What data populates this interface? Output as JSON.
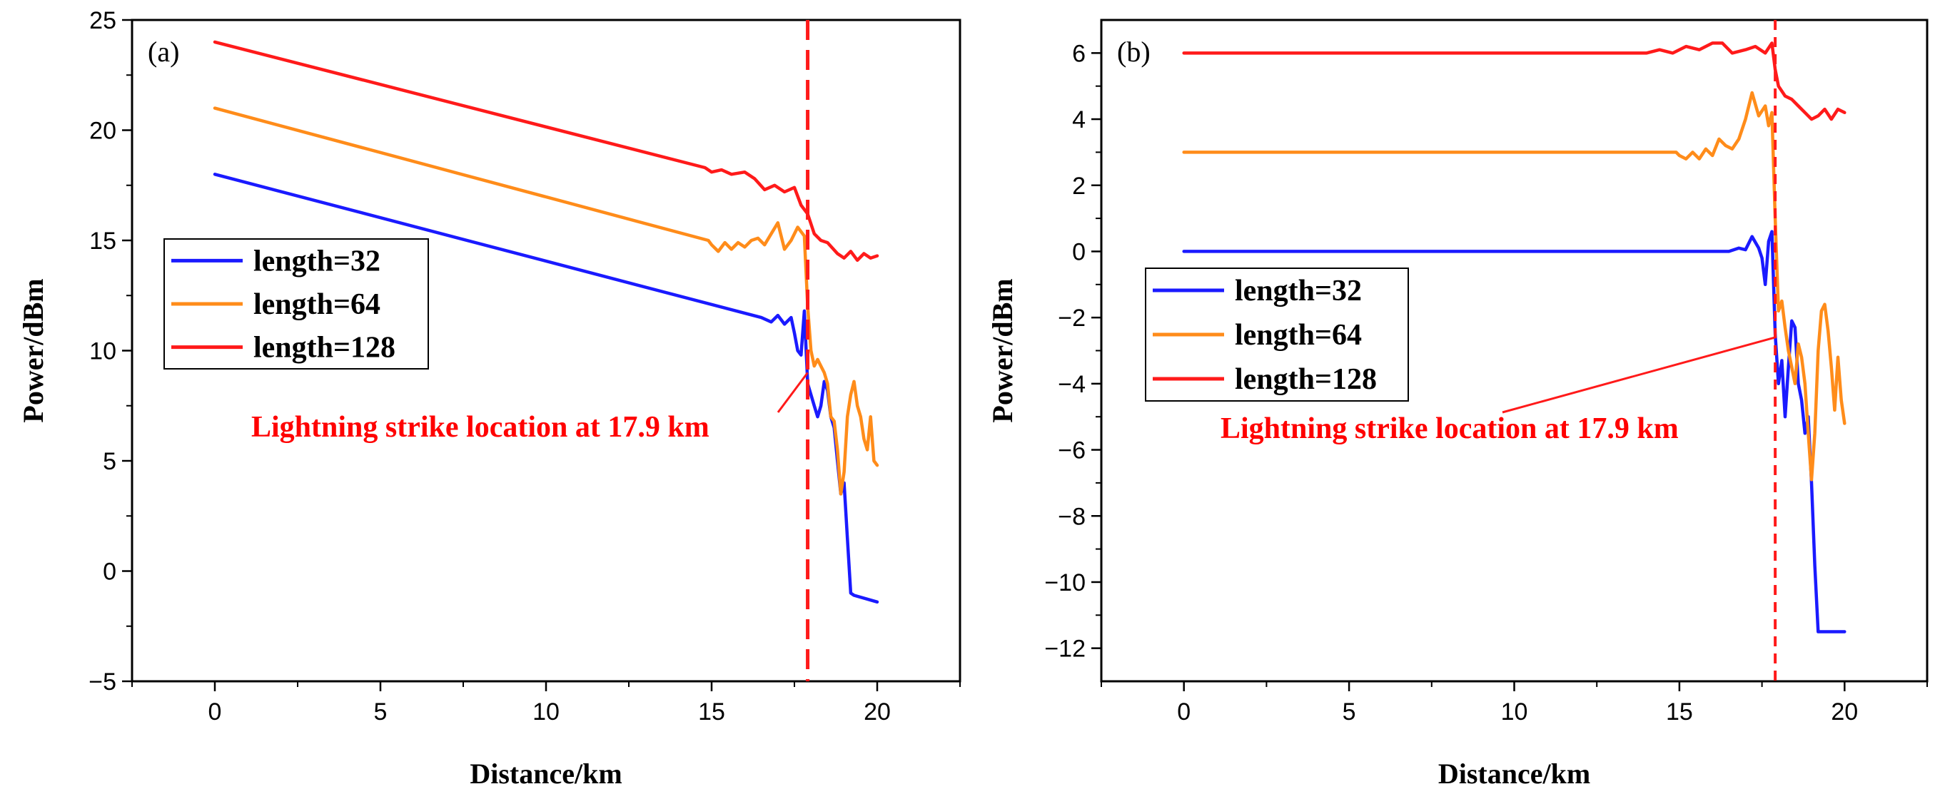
{
  "chart_data": [
    {
      "type": "line",
      "panel_label": "(a)",
      "xlabel": "Distance/km",
      "ylabel": "Power/dBm",
      "xlim": [
        -2.5,
        22.5
      ],
      "ylim": [
        -5,
        25
      ],
      "xticks": [
        0,
        5,
        10,
        15,
        20
      ],
      "yticks": [
        -5,
        0,
        5,
        10,
        15,
        20,
        25
      ],
      "xtick_labels": [
        "0",
        "5",
        "10",
        "15",
        "20"
      ],
      "ytick_labels": [
        "−5",
        "0",
        "5",
        "10",
        "15",
        "20",
        "25"
      ],
      "legend": [
        "length=32",
        "length=64",
        "length=128"
      ],
      "series": [
        {
          "name": "length=32",
          "color": "#1a1aff",
          "x": [
            0,
            16.5,
            16.8,
            17.0,
            17.2,
            17.4,
            17.5,
            17.6,
            17.7,
            17.8,
            17.9,
            18.0,
            18.1,
            18.2,
            18.3,
            18.4,
            18.5,
            18.6,
            18.7,
            18.8,
            18.9,
            19.0,
            19.1,
            19.2,
            19.3,
            20.0
          ],
          "y": [
            18.0,
            11.5,
            11.3,
            11.6,
            11.2,
            11.5,
            10.8,
            10.0,
            9.8,
            11.8,
            8.5,
            8.0,
            7.5,
            7.0,
            7.5,
            8.6,
            8.2,
            7.0,
            6.5,
            5.0,
            3.5,
            4.0,
            1.5,
            -1.0,
            -1.1,
            -1.4
          ]
        },
        {
          "name": "length=64",
          "color": "#ff8c1a",
          "x": [
            0,
            14.9,
            15.0,
            15.2,
            15.4,
            15.6,
            15.8,
            16.0,
            16.2,
            16.4,
            16.6,
            16.8,
            17.0,
            17.2,
            17.4,
            17.6,
            17.8,
            17.9,
            18.0,
            18.1,
            18.2,
            18.3,
            18.4,
            18.5,
            18.6,
            18.7,
            18.8,
            18.9,
            19.0,
            19.1,
            19.2,
            19.3,
            19.4,
            19.5,
            19.6,
            19.7,
            19.8,
            19.9,
            20.0
          ],
          "y": [
            21.0,
            15.0,
            14.8,
            14.5,
            14.9,
            14.6,
            14.9,
            14.7,
            15.0,
            15.1,
            14.8,
            15.3,
            15.8,
            14.6,
            15.0,
            15.6,
            15.2,
            12.0,
            10.0,
            9.3,
            9.6,
            9.3,
            9.0,
            8.5,
            7.0,
            6.8,
            5.5,
            3.5,
            4.5,
            7.0,
            8.0,
            8.6,
            7.5,
            7.0,
            6.0,
            5.5,
            7.0,
            5.0,
            4.8
          ]
        },
        {
          "name": "length=128",
          "color": "#ff1a1a",
          "x": [
            0,
            14.8,
            15.0,
            15.3,
            15.6,
            16.0,
            16.3,
            16.6,
            16.9,
            17.2,
            17.5,
            17.7,
            17.9,
            18.1,
            18.3,
            18.5,
            18.8,
            19.0,
            19.2,
            19.4,
            19.6,
            19.8,
            20.0
          ],
          "y": [
            24.0,
            18.3,
            18.1,
            18.2,
            18.0,
            18.1,
            17.8,
            17.3,
            17.5,
            17.2,
            17.4,
            16.6,
            16.2,
            15.3,
            15.0,
            14.9,
            14.4,
            14.2,
            14.5,
            14.1,
            14.4,
            14.2,
            14.3
          ]
        }
      ],
      "marker_line": {
        "x": 17.9
      },
      "annotation": {
        "text": "Lightning strike location at 17.9 km",
        "points_to": [
          17.9,
          9.0
        ]
      }
    },
    {
      "type": "line",
      "panel_label": "(b)",
      "xlabel": "Distance/km",
      "ylabel": "Power/dBm",
      "xlim": [
        -2.5,
        22.5
      ],
      "ylim": [
        -13,
        7
      ],
      "xticks": [
        0,
        5,
        10,
        15,
        20
      ],
      "yticks": [
        -12,
        -10,
        -8,
        -6,
        -4,
        -2,
        0,
        2,
        4,
        6
      ],
      "xtick_labels": [
        "0",
        "5",
        "10",
        "15",
        "20"
      ],
      "ytick_labels": [
        "−12",
        "−10",
        "−8",
        "−6",
        "−4",
        "−2",
        "0",
        "2",
        "4",
        "6"
      ],
      "legend": [
        "length=32",
        "length=64",
        "length=128"
      ],
      "series": [
        {
          "name": "length=32",
          "color": "#1a1aff",
          "x": [
            0,
            16.5,
            16.8,
            17.0,
            17.2,
            17.4,
            17.5,
            17.6,
            17.7,
            17.8,
            17.9,
            18.0,
            18.1,
            18.2,
            18.3,
            18.4,
            18.5,
            18.6,
            18.7,
            18.8,
            18.9,
            19.0,
            19.1,
            19.2,
            19.3,
            20.0
          ],
          "y": [
            0.0,
            0.0,
            0.1,
            0.05,
            0.45,
            0.1,
            -0.2,
            -1.0,
            0.3,
            0.6,
            -2.5,
            -4.0,
            -3.3,
            -5.0,
            -3.5,
            -2.1,
            -2.3,
            -4.0,
            -4.5,
            -5.5,
            -5.0,
            -7.0,
            -9.5,
            -11.5,
            -11.5,
            -11.5
          ]
        },
        {
          "name": "length=64",
          "color": "#ff8c1a",
          "x": [
            0,
            14.9,
            15.0,
            15.2,
            15.4,
            15.6,
            15.8,
            16.0,
            16.2,
            16.4,
            16.6,
            16.8,
            17.0,
            17.2,
            17.4,
            17.6,
            17.7,
            17.8,
            17.9,
            18.0,
            18.1,
            18.2,
            18.3,
            18.4,
            18.5,
            18.6,
            18.7,
            18.8,
            18.9,
            19.0,
            19.1,
            19.2,
            19.3,
            19.4,
            19.5,
            19.6,
            19.7,
            19.8,
            19.9,
            20.0
          ],
          "y": [
            3.0,
            3.0,
            2.9,
            2.8,
            3.0,
            2.8,
            3.1,
            2.9,
            3.4,
            3.2,
            3.1,
            3.4,
            4.0,
            4.8,
            4.1,
            4.4,
            3.8,
            4.2,
            1.0,
            -1.8,
            -1.5,
            -2.3,
            -3.0,
            -3.5,
            -4.0,
            -2.8,
            -3.2,
            -4.0,
            -5.5,
            -6.9,
            -5.5,
            -3.0,
            -1.8,
            -1.6,
            -2.4,
            -3.5,
            -4.8,
            -3.2,
            -4.5,
            -5.2
          ]
        },
        {
          "name": "length=128",
          "color": "#ff1a1a",
          "x": [
            0,
            14.0,
            14.4,
            14.8,
            15.2,
            15.6,
            16.0,
            16.3,
            16.6,
            17.0,
            17.3,
            17.6,
            17.8,
            17.9,
            18.0,
            18.2,
            18.4,
            18.6,
            18.8,
            19.0,
            19.2,
            19.4,
            19.6,
            19.8,
            20.0
          ],
          "y": [
            6.0,
            6.0,
            6.1,
            6.0,
            6.2,
            6.1,
            6.3,
            6.3,
            6.0,
            6.1,
            6.2,
            6.0,
            6.3,
            5.5,
            5.0,
            4.7,
            4.6,
            4.4,
            4.2,
            4.0,
            4.1,
            4.3,
            4.0,
            4.3,
            4.2
          ]
        }
      ],
      "marker_line": {
        "x": 17.9
      },
      "annotation": {
        "text": "Lightning strike location at 17.9 km",
        "points_to": [
          17.9,
          -2.6
        ]
      }
    }
  ]
}
